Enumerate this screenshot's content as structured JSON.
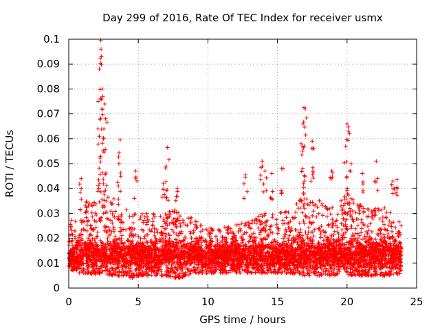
{
  "chart_data": {
    "type": "scatter",
    "title": "Day 299 of 2016, Rate Of TEC Index for receiver usmx",
    "xlabel": "GPS time / hours",
    "ylabel": "ROTI / TECUs",
    "xlim": [
      0,
      25
    ],
    "ylim": [
      0,
      0.1
    ],
    "xticks": [
      "0",
      "5",
      "10",
      "15",
      "20",
      "25"
    ],
    "yticks": [
      "0",
      "0.01",
      "0.02",
      "0.03",
      "0.04",
      "0.05",
      "0.06",
      "0.07",
      "0.08",
      "0.09",
      "0.1"
    ],
    "grid": true,
    "marker": "+",
    "color": "#ff0000",
    "data_range_hours": [
      0,
      23.9
    ],
    "envelope": {
      "hours": [
        0,
        0.5,
        1,
        1.5,
        2,
        2.3,
        2.6,
        3,
        3.5,
        4,
        4.5,
        5,
        6,
        7,
        7.5,
        8,
        9,
        10,
        11,
        12,
        13,
        14,
        15,
        16,
        17,
        17.5,
        18,
        19,
        20,
        20.5,
        21,
        22,
        23,
        23.9
      ],
      "typical_max": [
        0.027,
        0.028,
        0.036,
        0.035,
        0.04,
        0.045,
        0.042,
        0.037,
        0.035,
        0.034,
        0.03,
        0.03,
        0.03,
        0.031,
        0.032,
        0.03,
        0.028,
        0.024,
        0.025,
        0.026,
        0.027,
        0.03,
        0.031,
        0.031,
        0.039,
        0.036,
        0.036,
        0.034,
        0.038,
        0.035,
        0.034,
        0.033,
        0.032,
        0.026
      ],
      "typical_min": [
        0.008,
        0.006,
        0.006,
        0.006,
        0.005,
        0.006,
        0.006,
        0.005,
        0.005,
        0.005,
        0.004,
        0.005,
        0.005,
        0.005,
        0.004,
        0.004,
        0.006,
        0.006,
        0.006,
        0.006,
        0.006,
        0.006,
        0.006,
        0.006,
        0.005,
        0.005,
        0.005,
        0.005,
        0.005,
        0.005,
        0.005,
        0.005,
        0.005,
        0.006
      ]
    },
    "peaks": [
      {
        "x": 0.9,
        "y": 0.044
      },
      {
        "x": 2.2,
        "y": 0.088
      },
      {
        "x": 2.3,
        "y": 0.0995
      },
      {
        "x": 2.32,
        "y": 0.096
      },
      {
        "x": 2.35,
        "y": 0.093
      },
      {
        "x": 2.4,
        "y": 0.08
      },
      {
        "x": 2.45,
        "y": 0.077
      },
      {
        "x": 2.6,
        "y": 0.074
      },
      {
        "x": 2.65,
        "y": 0.068
      },
      {
        "x": 2.2,
        "y": 0.061
      },
      {
        "x": 2.5,
        "y": 0.06
      },
      {
        "x": 3.7,
        "y": 0.0595
      },
      {
        "x": 3.6,
        "y": 0.05
      },
      {
        "x": 4.8,
        "y": 0.047
      },
      {
        "x": 7.1,
        "y": 0.0565
      },
      {
        "x": 7.0,
        "y": 0.049
      },
      {
        "x": 6.8,
        "y": 0.042
      },
      {
        "x": 7.8,
        "y": 0.04
      },
      {
        "x": 12.7,
        "y": 0.0455
      },
      {
        "x": 13.9,
        "y": 0.051
      },
      {
        "x": 14.1,
        "y": 0.047
      },
      {
        "x": 14.6,
        "y": 0.046
      },
      {
        "x": 15.3,
        "y": 0.048
      },
      {
        "x": 16.9,
        "y": 0.0725
      },
      {
        "x": 17.0,
        "y": 0.072
      },
      {
        "x": 16.85,
        "y": 0.066
      },
      {
        "x": 16.7,
        "y": 0.058
      },
      {
        "x": 16.8,
        "y": 0.055
      },
      {
        "x": 17.5,
        "y": 0.059
      },
      {
        "x": 17.6,
        "y": 0.056
      },
      {
        "x": 18.9,
        "y": 0.047
      },
      {
        "x": 20.0,
        "y": 0.066
      },
      {
        "x": 20.1,
        "y": 0.063
      },
      {
        "x": 19.9,
        "y": 0.057
      },
      {
        "x": 20.3,
        "y": 0.05
      },
      {
        "x": 21.1,
        "y": 0.046
      },
      {
        "x": 22.1,
        "y": 0.051
      },
      {
        "x": 23.3,
        "y": 0.043
      },
      {
        "x": 23.6,
        "y": 0.0435
      }
    ],
    "seed": 299
  }
}
